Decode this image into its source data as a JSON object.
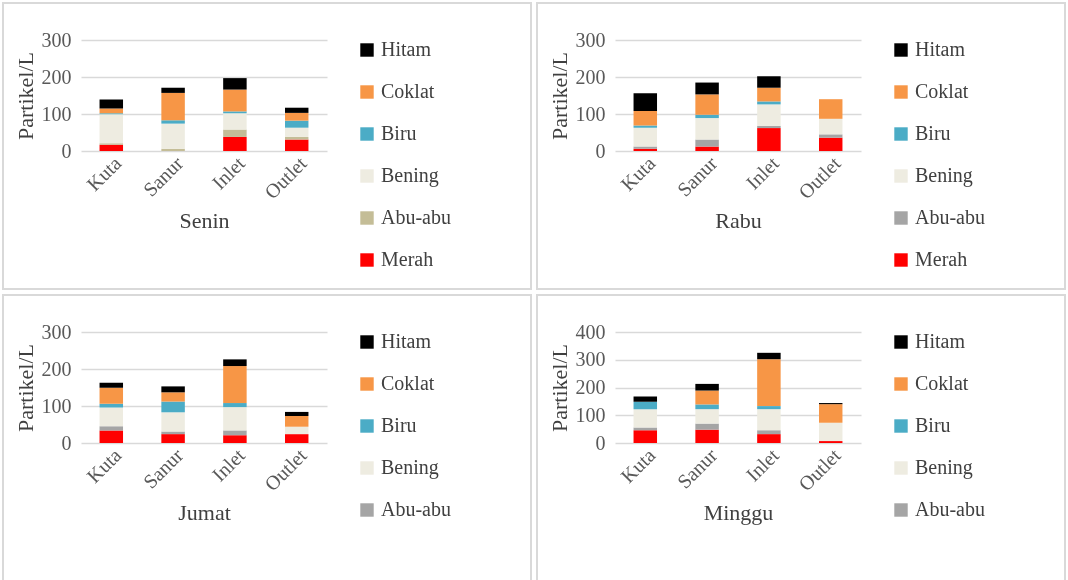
{
  "chart_data": [
    {
      "type": "bar",
      "stacked": true,
      "xlabel": "Senin",
      "ylabel": "Partikel/L",
      "categories": [
        "Kuta",
        "Sanur",
        "Inlet",
        "Outlet"
      ],
      "ylim": [
        0,
        300
      ],
      "yticks": [
        0,
        100,
        200,
        300
      ],
      "grid": "y",
      "legend": "right",
      "series": [
        {
          "name": "Merah",
          "color": "#ff0000",
          "values": [
            17,
            0,
            38,
            31
          ]
        },
        {
          "name": "Abu-abu",
          "color": "#c4bd97",
          "values": [
            4,
            6,
            20,
            7
          ]
        },
        {
          "name": "Bening",
          "color": "#eeece1",
          "values": [
            78,
            68,
            44,
            25
          ]
        },
        {
          "name": "Biru",
          "color": "#4bacc6",
          "values": [
            3,
            9,
            5,
            19
          ]
        },
        {
          "name": "Coklat",
          "color": "#f79646",
          "values": [
            13,
            74,
            59,
            21
          ]
        },
        {
          "name": "Hitam",
          "color": "#000000",
          "values": [
            24,
            14,
            31,
            14
          ]
        }
      ]
    },
    {
      "type": "bar",
      "stacked": true,
      "xlabel": "Rabu",
      "ylabel": "Partikel/L",
      "categories": [
        "Kuta",
        "Sanur",
        "Inlet",
        "Outlet"
      ],
      "ylim": [
        0,
        300
      ],
      "yticks": [
        0,
        100,
        200,
        300
      ],
      "grid": "y",
      "legend": "right",
      "series": [
        {
          "name": "Merah",
          "color": "#ff0000",
          "values": [
            6,
            12,
            62,
            36
          ]
        },
        {
          "name": "Abu-abu",
          "color": "#a5a5a5",
          "values": [
            6,
            19,
            6,
            9
          ]
        },
        {
          "name": "Bening",
          "color": "#eeece1",
          "values": [
            51,
            58,
            58,
            42
          ]
        },
        {
          "name": "Biru",
          "color": "#4bacc6",
          "values": [
            6,
            9,
            8,
            0
          ]
        },
        {
          "name": "Coklat",
          "color": "#f79646",
          "values": [
            39,
            55,
            37,
            53
          ]
        },
        {
          "name": "Hitam",
          "color": "#000000",
          "values": [
            48,
            32,
            31,
            0
          ]
        }
      ]
    },
    {
      "type": "bar",
      "stacked": true,
      "xlabel": "Jumat",
      "ylabel": "Partikel/L",
      "categories": [
        "Kuta",
        "Sanur",
        "Inlet",
        "Outlet"
      ],
      "ylim": [
        0,
        300
      ],
      "yticks": [
        0,
        100,
        200,
        300
      ],
      "grid": "y",
      "legend": "right",
      "series": [
        {
          "color": "#ff0000",
          "values": [
            34,
            24,
            21,
            24
          ]
        },
        {
          "name": "Abu-abu",
          "color": "#a5a5a5",
          "values": [
            11,
            7,
            13,
            0
          ]
        },
        {
          "name": "Bening",
          "color": "#eeece1",
          "values": [
            51,
            52,
            63,
            20
          ]
        },
        {
          "name": "Biru",
          "color": "#4bacc6",
          "values": [
            10,
            29,
            11,
            0
          ]
        },
        {
          "name": "Coklat",
          "color": "#f79646",
          "values": [
            43,
            25,
            100,
            29
          ]
        },
        {
          "name": "Hitam",
          "color": "#000000",
          "values": [
            14,
            16,
            18,
            11
          ]
        }
      ]
    },
    {
      "type": "bar",
      "stacked": true,
      "xlabel": "Minggu",
      "ylabel": "Partikel/L",
      "categories": [
        "Kuta",
        "Sanur",
        "Inlet",
        "Outlet"
      ],
      "ylim": [
        0,
        400
      ],
      "yticks": [
        0,
        100,
        200,
        300,
        400
      ],
      "grid": "y",
      "legend": "right",
      "series": [
        {
          "color": "#ff0000",
          "values": [
            46,
            48,
            32,
            7
          ]
        },
        {
          "name": "Abu-abu",
          "color": "#a5a5a5",
          "values": [
            10,
            22,
            14,
            0
          ]
        },
        {
          "name": "Bening",
          "color": "#eeece1",
          "values": [
            66,
            52,
            76,
            66
          ]
        },
        {
          "name": "Biru",
          "color": "#4bacc6",
          "values": [
            27,
            17,
            11,
            0
          ]
        },
        {
          "name": "Coklat",
          "color": "#f79646",
          "values": [
            0,
            50,
            169,
            67
          ]
        },
        {
          "name": "Hitam",
          "color": "#000000",
          "values": [
            19,
            24,
            23,
            4
          ]
        }
      ]
    }
  ]
}
